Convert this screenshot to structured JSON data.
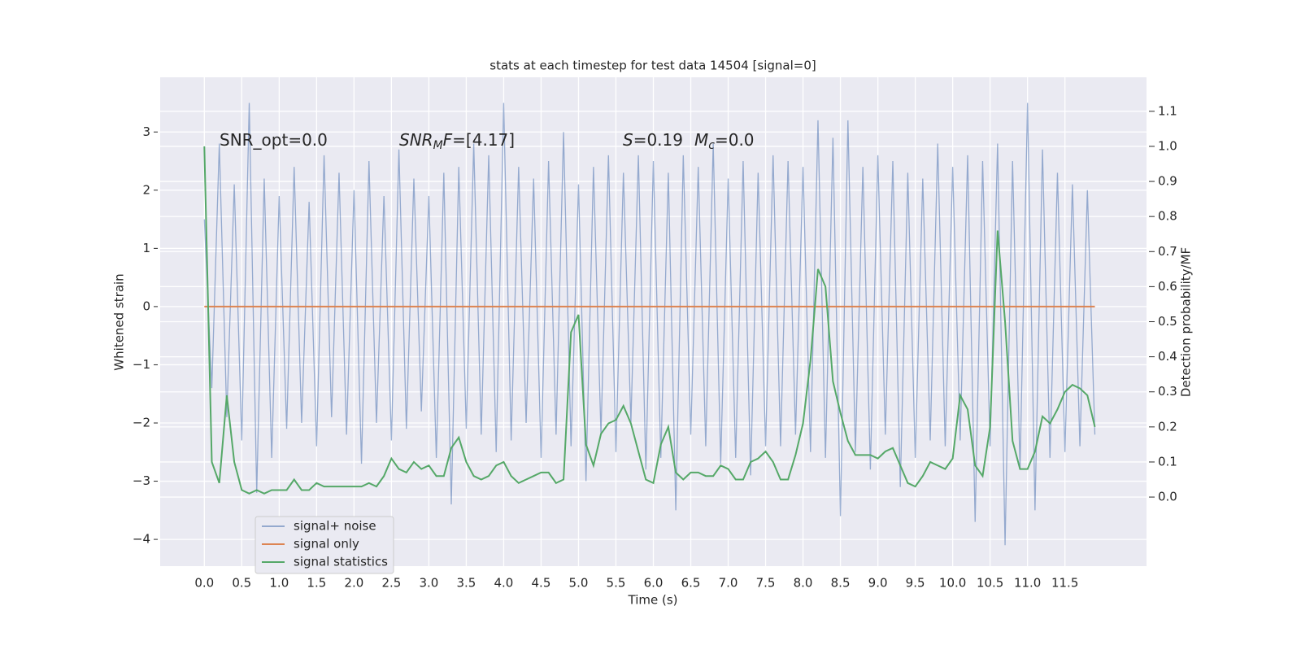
{
  "chart_data": {
    "type": "line",
    "title": "stats at each timestep for test data 14504 [signal=0]",
    "xlabel": "Time (s)",
    "ylabel": "Whitened strain",
    "y2label": "Detection probability/MF",
    "annotations": [
      [
        "SNR_opt=0.0"
      ],
      [
        "SNR",
        "M",
        "F",
        "=[4.17]"
      ],
      [
        "S",
        "=0.19",
        "M",
        "c",
        "=0.0"
      ]
    ],
    "x": [
      0,
      0.1,
      0.2,
      0.3,
      0.4,
      0.5,
      0.6,
      0.7,
      0.8,
      0.9,
      1,
      1.1,
      1.2,
      1.3,
      1.4,
      1.5,
      1.6,
      1.7,
      1.8,
      1.9,
      2,
      2.1,
      2.2,
      2.3,
      2.4,
      2.5,
      2.6,
      2.7,
      2.8,
      2.9,
      3,
      3.1,
      3.2,
      3.3,
      3.4,
      3.5,
      3.6,
      3.7,
      3.8,
      3.9,
      4,
      4.1,
      4.2,
      4.3,
      4.4,
      4.5,
      4.6,
      4.7,
      4.8,
      4.9,
      5,
      5.1,
      5.2,
      5.3,
      5.4,
      5.5,
      5.6,
      5.7,
      5.8,
      5.9,
      6,
      6.1,
      6.2,
      6.3,
      6.4,
      6.5,
      6.6,
      6.7,
      6.8,
      6.9,
      7,
      7.1,
      7.2,
      7.3,
      7.4,
      7.5,
      7.6,
      7.7,
      7.8,
      7.9,
      8,
      8.1,
      8.2,
      8.3,
      8.4,
      8.5,
      8.6,
      8.7,
      8.8,
      8.9,
      9,
      9.1,
      9.2,
      9.3,
      9.4,
      9.5,
      9.6,
      9.7,
      9.8,
      9.9,
      10,
      10.1,
      10.2,
      10.3,
      10.4,
      10.5,
      10.6,
      10.7,
      10.8,
      10.9,
      11,
      11.1,
      11.2,
      11.3,
      11.4,
      11.5,
      11.6,
      11.7,
      11.8,
      11.9
    ],
    "series": [
      {
        "name": "signal+ noise",
        "color": "rgba(76,114,176,0.55)",
        "values": [
          1.5,
          -1.4,
          2.8,
          -1.9,
          2.1,
          -2.3,
          3.5,
          -3.2,
          2.2,
          -2.6,
          1.9,
          -2.1,
          2.4,
          -2.0,
          1.8,
          -2.4,
          2.6,
          -1.9,
          2.3,
          -2.2,
          2.0,
          -2.7,
          2.5,
          -2.0,
          1.9,
          -2.3,
          2.7,
          -2.1,
          2.2,
          -1.8,
          1.9,
          -2.6,
          2.3,
          -3.4,
          2.4,
          -2.1,
          2.8,
          -2.2,
          2.6,
          -2.5,
          3.5,
          -2.3,
          2.4,
          -2.0,
          2.2,
          -2.6,
          2.5,
          -2.2,
          3.0,
          -2.4,
          2.1,
          -3.0,
          2.4,
          -2.2,
          2.6,
          -2.5,
          2.3,
          -2.0,
          2.6,
          -2.8,
          2.5,
          -2.6,
          2.3,
          -3.5,
          2.6,
          -2.2,
          2.4,
          -2.4,
          2.8,
          -2.7,
          2.2,
          -2.6,
          2.5,
          -2.9,
          2.3,
          -2.4,
          2.6,
          -2.4,
          2.5,
          -2.2,
          2.4,
          -2.5,
          3.2,
          -2.6,
          2.9,
          -3.6,
          3.2,
          -2.5,
          2.4,
          -2.8,
          2.6,
          -2.2,
          2.5,
          -3.1,
          2.3,
          -2.6,
          2.2,
          -2.3,
          2.8,
          -2.4,
          2.4,
          -2.3,
          2.6,
          -3.7,
          2.5,
          -2.4,
          2.8,
          -4.1,
          2.5,
          -2.8,
          3.5,
          -3.5,
          2.7,
          -2.6,
          2.3,
          -2.5,
          2.1,
          -2.4,
          2.0,
          -2.2
        ]
      },
      {
        "name": "signal only",
        "color": "#dd8452",
        "values": [
          0,
          0,
          0,
          0,
          0,
          0,
          0,
          0,
          0,
          0,
          0,
          0,
          0,
          0,
          0,
          0,
          0,
          0,
          0,
          0,
          0,
          0,
          0,
          0,
          0,
          0,
          0,
          0,
          0,
          0,
          0,
          0,
          0,
          0,
          0,
          0,
          0,
          0,
          0,
          0,
          0,
          0,
          0,
          0,
          0,
          0,
          0,
          0,
          0,
          0,
          0,
          0,
          0,
          0,
          0,
          0,
          0,
          0,
          0,
          0,
          0,
          0,
          0,
          0,
          0,
          0,
          0,
          0,
          0,
          0,
          0,
          0,
          0,
          0,
          0,
          0,
          0,
          0,
          0,
          0,
          0,
          0,
          0,
          0,
          0,
          0,
          0,
          0,
          0,
          0,
          0,
          0,
          0,
          0,
          0,
          0,
          0,
          0,
          0,
          0,
          0,
          0,
          0,
          0,
          0,
          0,
          0,
          0,
          0,
          0,
          0,
          0,
          0,
          0,
          0,
          0,
          0,
          0,
          0,
          0
        ]
      },
      {
        "name": "signal statistics",
        "color": "#55a868",
        "axis": "y2",
        "values": [
          1.0,
          0.1,
          0.04,
          0.29,
          0.1,
          0.02,
          0.01,
          0.02,
          0.01,
          0.02,
          0.02,
          0.02,
          0.05,
          0.02,
          0.02,
          0.04,
          0.03,
          0.03,
          0.03,
          0.03,
          0.03,
          0.03,
          0.04,
          0.03,
          0.06,
          0.11,
          0.08,
          0.07,
          0.1,
          0.08,
          0.09,
          0.06,
          0.06,
          0.14,
          0.17,
          0.1,
          0.06,
          0.05,
          0.06,
          0.09,
          0.1,
          0.06,
          0.04,
          0.05,
          0.06,
          0.07,
          0.07,
          0.04,
          0.05,
          0.47,
          0.52,
          0.15,
          0.09,
          0.18,
          0.21,
          0.22,
          0.26,
          0.21,
          0.13,
          0.05,
          0.04,
          0.15,
          0.2,
          0.07,
          0.05,
          0.07,
          0.07,
          0.06,
          0.06,
          0.09,
          0.08,
          0.05,
          0.05,
          0.1,
          0.11,
          0.13,
          0.1,
          0.05,
          0.05,
          0.12,
          0.21,
          0.39,
          0.65,
          0.6,
          0.33,
          0.24,
          0.16,
          0.12,
          0.12,
          0.12,
          0.11,
          0.13,
          0.14,
          0.09,
          0.04,
          0.03,
          0.06,
          0.1,
          0.09,
          0.08,
          0.11,
          0.29,
          0.25,
          0.09,
          0.06,
          0.2,
          0.76,
          0.5,
          0.16,
          0.08,
          0.08,
          0.13,
          0.23,
          0.21,
          0.25,
          0.3,
          0.32,
          0.31,
          0.29,
          0.2
        ]
      }
    ],
    "xlim": [
      -0.59,
      12.59
    ],
    "xticks": [
      {
        "value": 0,
        "label": "0.0"
      },
      0.5,
      {
        "value": 1,
        "label": "1.0"
      },
      1.5,
      {
        "value": 2,
        "label": "2.0"
      },
      2.5,
      {
        "value": 3,
        "label": "3.0"
      },
      3.5,
      {
        "value": 4,
        "label": "4.0"
      },
      4.5,
      {
        "value": 5,
        "label": "5.0"
      },
      5.5,
      {
        "value": 6,
        "label": "6.0"
      },
      6.5,
      {
        "value": 7,
        "label": "7.0"
      },
      7.5,
      {
        "value": 8,
        "label": "8.0"
      },
      8.5,
      {
        "value": 9,
        "label": "9.0"
      },
      9.5,
      {
        "value": 10,
        "label": "10.0"
      },
      10.5,
      {
        "value": 11,
        "label": "11.0"
      },
      11.5
    ],
    "ylim": [
      -4.46,
      3.94
    ],
    "yticks": [
      {
        "value": -4,
        "label": "−4"
      },
      {
        "value": -3,
        "label": "−3"
      },
      {
        "value": -2,
        "label": "−2"
      },
      {
        "value": -1,
        "label": "−1"
      },
      0,
      1,
      2,
      3
    ],
    "y2lim": [
      -0.197,
      1.197
    ],
    "y2ticks": [
      {
        "value": 0,
        "label": "0.0"
      },
      0.1,
      0.2,
      0.3,
      0.4,
      0.5,
      0.6,
      0.7,
      0.8,
      0.9,
      {
        "value": 1,
        "label": "1.0"
      },
      1.1
    ],
    "grid": true,
    "legend": "lower left"
  }
}
